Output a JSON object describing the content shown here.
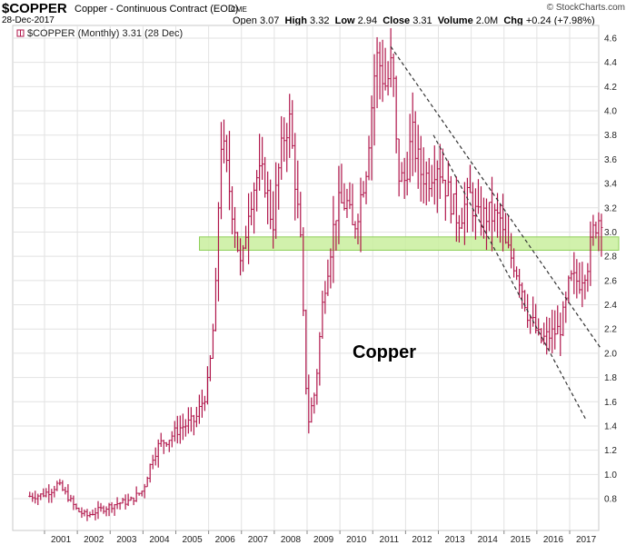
{
  "header": {
    "symbol": "$COPPER",
    "contract": "Copper - Continuous Contract (EOD)",
    "exchange": "CME",
    "date": "28-Dec-2017",
    "open_label": "Open",
    "open": "3.07",
    "high_label": "High",
    "high": "3.32",
    "low_label": "Low",
    "low": "2.94",
    "close_label": "Close",
    "close": "3.31",
    "volume_label": "Volume",
    "volume": "2.0M",
    "chg_label": "Chg",
    "chg": "+0.24 (+7.98%)",
    "logo": "© StockCharts.com"
  },
  "chart_data": {
    "type": "bar",
    "subtype": "ohlc-monthly",
    "legend": "$COPPER (Monthly) 3.31 (28 Dec)",
    "annotation": "Copper",
    "ylim": [
      0.55,
      4.68
    ],
    "yticks": [
      "0.8",
      "1.0",
      "1.2",
      "1.4",
      "1.6",
      "1.8",
      "2.0",
      "2.2",
      "2.4",
      "2.6",
      "2.8",
      "3.0",
      "3.2",
      "3.4",
      "3.6",
      "3.8",
      "4.0",
      "4.2",
      "4.4",
      "4.6"
    ],
    "xticks": [
      "2001",
      "2002",
      "2003",
      "2004",
      "2005",
      "2006",
      "2007",
      "2008",
      "2009",
      "2010",
      "2011",
      "2012",
      "2013",
      "2014",
      "2015",
      "2016",
      "2017"
    ],
    "x_start_year": 2000.55,
    "x_end_year": 2017.98,
    "colors": {
      "bars": "#b0154a",
      "band": "#c9ef9d",
      "band_edge": "#8fcf5a",
      "grid": "#e2e2e2",
      "trend": "#333333"
    },
    "support_band": [
      2.85,
      2.96
    ],
    "trendlines": [
      {
        "from": [
          2011.55,
          4.53
        ],
        "to": [
          2017.95,
          2.04
        ]
      },
      {
        "from": [
          2012.85,
          3.8
        ],
        "to": [
          2017.5,
          1.45
        ]
      }
    ],
    "price_path": [
      [
        2000.55,
        0.82
      ],
      [
        2000.9,
        0.83
      ],
      [
        2001.2,
        0.87
      ],
      [
        2001.4,
        0.92
      ],
      [
        2001.7,
        0.82
      ],
      [
        2002.0,
        0.7
      ],
      [
        2002.3,
        0.66
      ],
      [
        2002.6,
        0.7
      ],
      [
        2002.9,
        0.73
      ],
      [
        2003.2,
        0.76
      ],
      [
        2003.6,
        0.78
      ],
      [
        2004.0,
        0.87
      ],
      [
        2004.3,
        1.15
      ],
      [
        2004.5,
        1.25
      ],
      [
        2004.8,
        1.3
      ],
      [
        2005.1,
        1.38
      ],
      [
        2005.6,
        1.45
      ],
      [
        2005.95,
        1.7
      ],
      [
        2006.1,
        2.05
      ],
      [
        2006.25,
        2.65
      ],
      [
        2006.35,
        3.8
      ],
      [
        2006.5,
        3.6
      ],
      [
        2006.8,
        3.05
      ],
      [
        2007.0,
        2.65
      ],
      [
        2007.2,
        3.2
      ],
      [
        2007.45,
        3.45
      ],
      [
        2007.7,
        3.45
      ],
      [
        2007.95,
        3.05
      ],
      [
        2008.1,
        3.45
      ],
      [
        2008.3,
        3.8
      ],
      [
        2008.45,
        3.95
      ],
      [
        2008.6,
        3.55
      ],
      [
        2008.8,
        2.9
      ],
      [
        2008.95,
        1.8
      ],
      [
        2009.05,
        1.45
      ],
      [
        2009.25,
        1.7
      ],
      [
        2009.5,
        2.5
      ],
      [
        2009.9,
        3.2
      ],
      [
        2010.2,
        3.25
      ],
      [
        2010.4,
        3.0
      ],
      [
        2010.6,
        3.25
      ],
      [
        2010.8,
        3.55
      ],
      [
        2011.05,
        4.3
      ],
      [
        2011.15,
        4.45
      ],
      [
        2011.4,
        4.2
      ],
      [
        2011.6,
        4.4
      ],
      [
        2011.75,
        3.5
      ],
      [
        2011.95,
        3.4
      ],
      [
        2012.2,
        3.8
      ],
      [
        2012.45,
        3.5
      ],
      [
        2012.7,
        3.45
      ],
      [
        2012.95,
        3.6
      ],
      [
        2013.2,
        3.4
      ],
      [
        2013.4,
        3.25
      ],
      [
        2013.6,
        3.1
      ],
      [
        2013.95,
        3.3
      ],
      [
        2014.2,
        3.1
      ],
      [
        2014.5,
        3.15
      ],
      [
        2014.9,
        3.1
      ],
      [
        2015.0,
        2.9
      ],
      [
        2015.3,
        2.75
      ],
      [
        2015.5,
        2.6
      ],
      [
        2015.7,
        2.35
      ],
      [
        2015.95,
        2.2
      ],
      [
        2016.1,
        2.1
      ],
      [
        2016.4,
        2.15
      ],
      [
        2016.7,
        2.2
      ],
      [
        2016.85,
        2.35
      ],
      [
        2017.0,
        2.6
      ],
      [
        2017.3,
        2.6
      ],
      [
        2017.55,
        2.75
      ],
      [
        2017.75,
        3.05
      ],
      [
        2017.95,
        3.15
      ]
    ]
  }
}
